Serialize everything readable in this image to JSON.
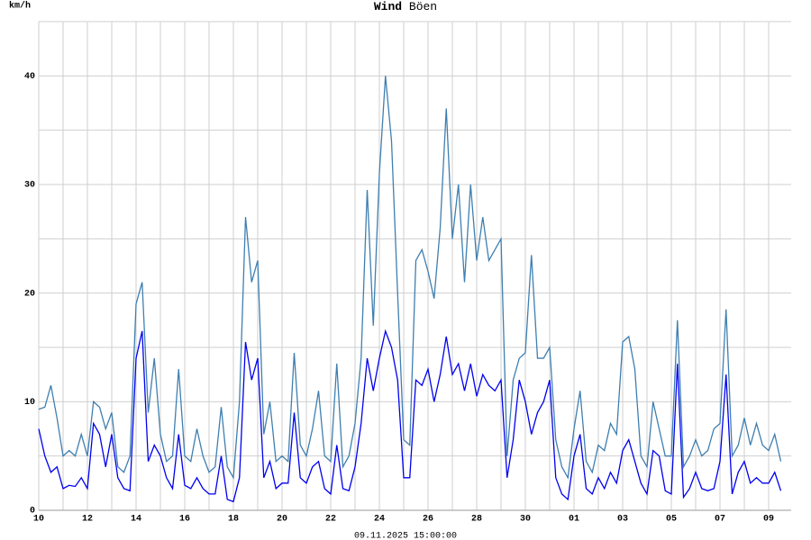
{
  "chart_data": {
    "type": "line",
    "y_label": "km/h",
    "footer": "09.11.2025 15:00:00",
    "categories": [
      "10",
      null,
      null,
      null,
      null,
      null,
      null,
      null,
      "12",
      null,
      null,
      null,
      null,
      null,
      null,
      null,
      "14",
      null,
      null,
      null,
      null,
      null,
      null,
      null,
      "16",
      null,
      null,
      null,
      null,
      null,
      null,
      null,
      "18",
      null,
      null,
      null,
      null,
      null,
      null,
      null,
      "20",
      null,
      null,
      null,
      null,
      null,
      null,
      null,
      "22",
      null,
      null,
      null,
      null,
      null,
      null,
      null,
      "24",
      null,
      null,
      null,
      null,
      null,
      null,
      null,
      "26",
      null,
      null,
      null,
      null,
      null,
      null,
      null,
      "28",
      null,
      null,
      null,
      null,
      null,
      null,
      null,
      "30",
      null,
      null,
      null,
      null,
      null,
      null,
      null,
      "01",
      null,
      null,
      null,
      null,
      null,
      null,
      null,
      "03",
      null,
      null,
      null,
      null,
      null,
      null,
      null,
      "05",
      null,
      null,
      null,
      null,
      null,
      null,
      null,
      "07",
      null,
      null,
      null,
      null,
      null,
      null,
      null,
      "09",
      null,
      null
    ],
    "series": [
      {
        "name": "Wind",
        "color": "#0000ee",
        "values": [
          7.5,
          5,
          3.5,
          4,
          2,
          2.3,
          2.2,
          3,
          2,
          8,
          7,
          4,
          7,
          3,
          2,
          1.8,
          14,
          16.5,
          4.5,
          6,
          5,
          3,
          2,
          7,
          2.3,
          2,
          3,
          2,
          1.5,
          1.5,
          5,
          1,
          0.8,
          3,
          15.5,
          12,
          14,
          3,
          4.5,
          2,
          2.5,
          2.5,
          9,
          3,
          2.5,
          4,
          4.5,
          2,
          1.5,
          6,
          2,
          1.8,
          4,
          8,
          14,
          11,
          14,
          16.5,
          15,
          12,
          3,
          3,
          12,
          11.5,
          13,
          10,
          12.5,
          16,
          12.5,
          13.5,
          11,
          13.5,
          10.5,
          12.5,
          11.5,
          11,
          12,
          3,
          6.5,
          12,
          10,
          7,
          9,
          10,
          12,
          3,
          1.5,
          1,
          5,
          7,
          2,
          1.5,
          3,
          2,
          3.5,
          2.5,
          5.5,
          6.5,
          4.5,
          2.5,
          1.5,
          5.5,
          5,
          1.8,
          1.5,
          13.5,
          1.2,
          2,
          3.5,
          2,
          1.8,
          2,
          4.5,
          12.5,
          1.5,
          3.5,
          4.5,
          2.5,
          3,
          2.5,
          2.5,
          3.5,
          1.8
        ]
      },
      {
        "name": "Böen",
        "color": "#3f7fb0",
        "values": [
          9.3,
          9.5,
          11.5,
          8.5,
          5,
          5.5,
          5,
          7,
          5,
          10,
          9.5,
          7.5,
          9,
          4,
          3.5,
          5,
          19,
          21,
          9,
          14,
          7,
          4.5,
          5,
          13,
          5,
          4.5,
          7.5,
          5,
          3.5,
          4,
          9.5,
          4,
          3,
          10,
          27,
          21,
          23,
          7,
          10,
          4.5,
          5,
          4.5,
          14.5,
          6,
          5,
          7.5,
          11,
          5,
          4.5,
          13.5,
          4,
          5,
          8,
          14,
          29.5,
          17,
          31,
          40,
          34,
          20,
          6.5,
          6,
          23,
          24,
          22,
          19.5,
          26,
          37,
          25,
          30,
          21,
          30,
          23,
          27,
          23,
          24,
          25,
          5,
          12,
          14,
          14.5,
          23.5,
          14,
          14,
          15,
          6.5,
          4,
          3,
          7.5,
          11,
          4.5,
          3.5,
          6,
          5.5,
          8,
          7,
          15.5,
          16,
          13,
          5,
          4,
          10,
          7.5,
          5,
          5,
          17.5,
          4,
          5,
          6.5,
          5,
          5.5,
          7.5,
          8,
          18.5,
          5,
          6,
          8.5,
          6,
          8,
          6,
          5.5,
          7,
          4.5
        ]
      }
    ],
    "ylim": [
      0,
      45
    ],
    "yticks": [
      0,
      10,
      20,
      30,
      40
    ],
    "grid": true
  }
}
